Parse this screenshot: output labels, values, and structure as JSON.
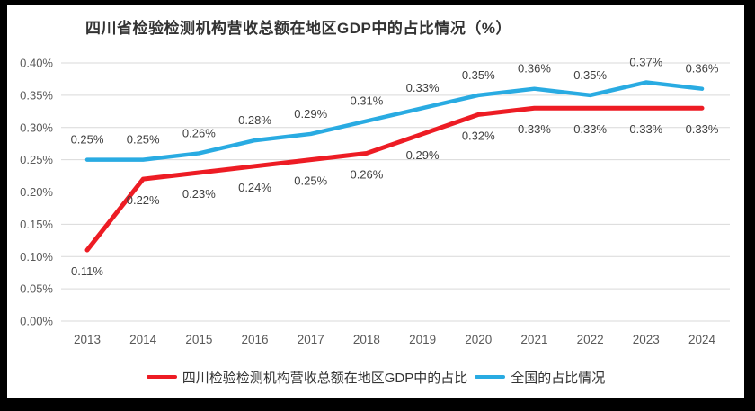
{
  "page": {
    "background": "#000000",
    "chart_background": "#ffffff"
  },
  "chart_data": {
    "type": "line",
    "title": "四川省检验检测机构营收总额在地区GDP中的占比情况（%）",
    "categories": [
      "2013",
      "2014",
      "2015",
      "2016",
      "2017",
      "2018",
      "2019",
      "2020",
      "2021",
      "2022",
      "2023",
      "2024"
    ],
    "series": [
      {
        "name": "四川检验检测机构营收总额在地区GDP中的占比",
        "color": "#ed1c24",
        "values": [
          0.11,
          0.22,
          0.23,
          0.24,
          0.25,
          0.26,
          0.29,
          0.32,
          0.33,
          0.33,
          0.33,
          0.33
        ],
        "labels": [
          "0.11%",
          "0.22%",
          "0.23%",
          "0.24%",
          "0.25%",
          "0.26%",
          "0.29%",
          "0.32%",
          "0.33%",
          "0.33%",
          "0.33%",
          "0.33%"
        ],
        "label_position": "below"
      },
      {
        "name": "全国的占比情况",
        "color": "#29abe2",
        "values": [
          0.25,
          0.25,
          0.26,
          0.28,
          0.29,
          0.31,
          0.33,
          0.35,
          0.36,
          0.35,
          0.37,
          0.36
        ],
        "labels": [
          "0.25%",
          "0.25%",
          "0.26%",
          "0.28%",
          "0.29%",
          "0.31%",
          "0.33%",
          "0.35%",
          "0.36%",
          "0.35%",
          "0.37%",
          "0.36%"
        ],
        "label_position": "above"
      }
    ],
    "y_axis": {
      "min": 0,
      "max": 0.4,
      "ticks": [
        "0.00%",
        "0.05%",
        "0.10%",
        "0.15%",
        "0.20%",
        "0.25%",
        "0.30%",
        "0.35%",
        "0.40%"
      ]
    },
    "grid": true,
    "legend_position": "bottom",
    "colors": {
      "gridline": "#d9d9d9",
      "axis_text": "#595959",
      "data_label": "#404040",
      "title_text": "#333333"
    }
  }
}
